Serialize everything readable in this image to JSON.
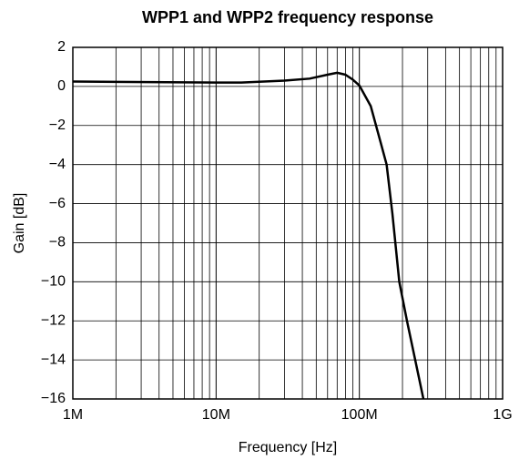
{
  "chart_data": {
    "type": "line",
    "title": "WPP1 and WPP2 frequency response",
    "xlabel": "Frequency [Hz]",
    "ylabel": "Gain [dB]",
    "xscale": "log",
    "grid": true,
    "x": [
      1000000,
      10000000,
      15000000,
      30000000,
      45000000,
      60000000,
      70000000,
      80000000,
      90000000,
      100000000,
      120000000,
      140000000,
      155000000,
      170000000,
      190000000,
      215000000,
      280000000
    ],
    "series": [
      {
        "name": "Gain",
        "color": "#000000",
        "values": [
          0.25,
          0.2,
          0.2,
          0.3,
          0.4,
          0.6,
          0.7,
          0.6,
          0.35,
          0.05,
          -1,
          -2.8,
          -4,
          -6.5,
          -10,
          -12,
          -16
        ]
      }
    ],
    "xlim": [
      1000000,
      1000000000
    ],
    "xticks": [
      {
        "value": 1000000,
        "label": "1M"
      },
      {
        "value": 10000000,
        "label": "10M"
      },
      {
        "value": 100000000,
        "label": "100M"
      },
      {
        "value": 1000000000,
        "label": "1G"
      }
    ],
    "ylim": [
      -16,
      2
    ],
    "yticks": [
      2,
      0,
      {
        "value": -2,
        "label": "−2"
      },
      {
        "value": -4,
        "label": "−4"
      },
      {
        "value": -6,
        "label": "−6"
      },
      {
        "value": -8,
        "label": "−8"
      },
      {
        "value": -10,
        "label": "−10"
      },
      {
        "value": -12,
        "label": "−12"
      },
      {
        "value": -14,
        "label": "−14"
      },
      {
        "value": -16,
        "label": "−16"
      }
    ]
  }
}
